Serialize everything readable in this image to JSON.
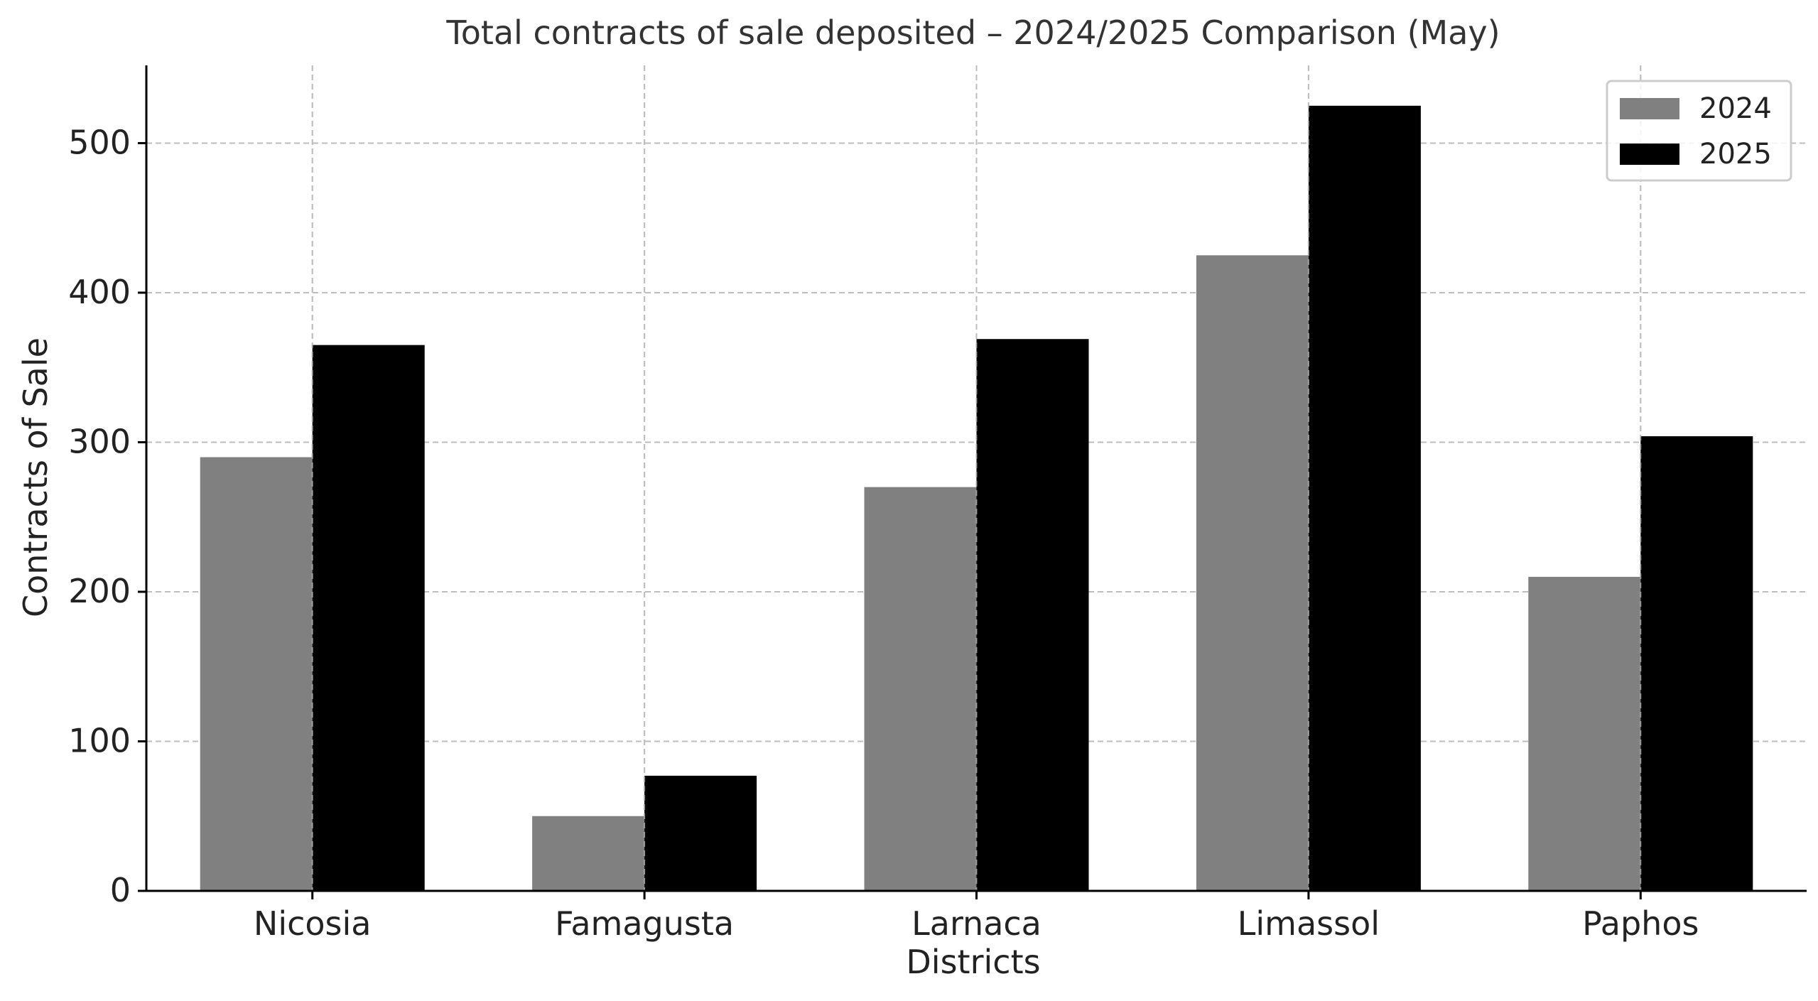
{
  "chart_data": {
    "type": "bar",
    "title": "Total contracts of sale deposited – 2024/2025 Comparison (May)",
    "xlabel": "Districts",
    "ylabel": "Contracts of Sale",
    "categories": [
      "Nicosia",
      "Famagusta",
      "Larnaca",
      "Limassol",
      "Paphos"
    ],
    "series": [
      {
        "name": "2024",
        "values": [
          290,
          50,
          270,
          425,
          210
        ],
        "color": "#808080"
      },
      {
        "name": "2025",
        "values": [
          365,
          77,
          369,
          525,
          304
        ],
        "color": "#000000"
      }
    ],
    "ylim": [
      0,
      552
    ],
    "yticks": [
      0,
      100,
      200,
      300,
      400,
      500
    ],
    "grid": true,
    "legend_position": "top-right"
  }
}
